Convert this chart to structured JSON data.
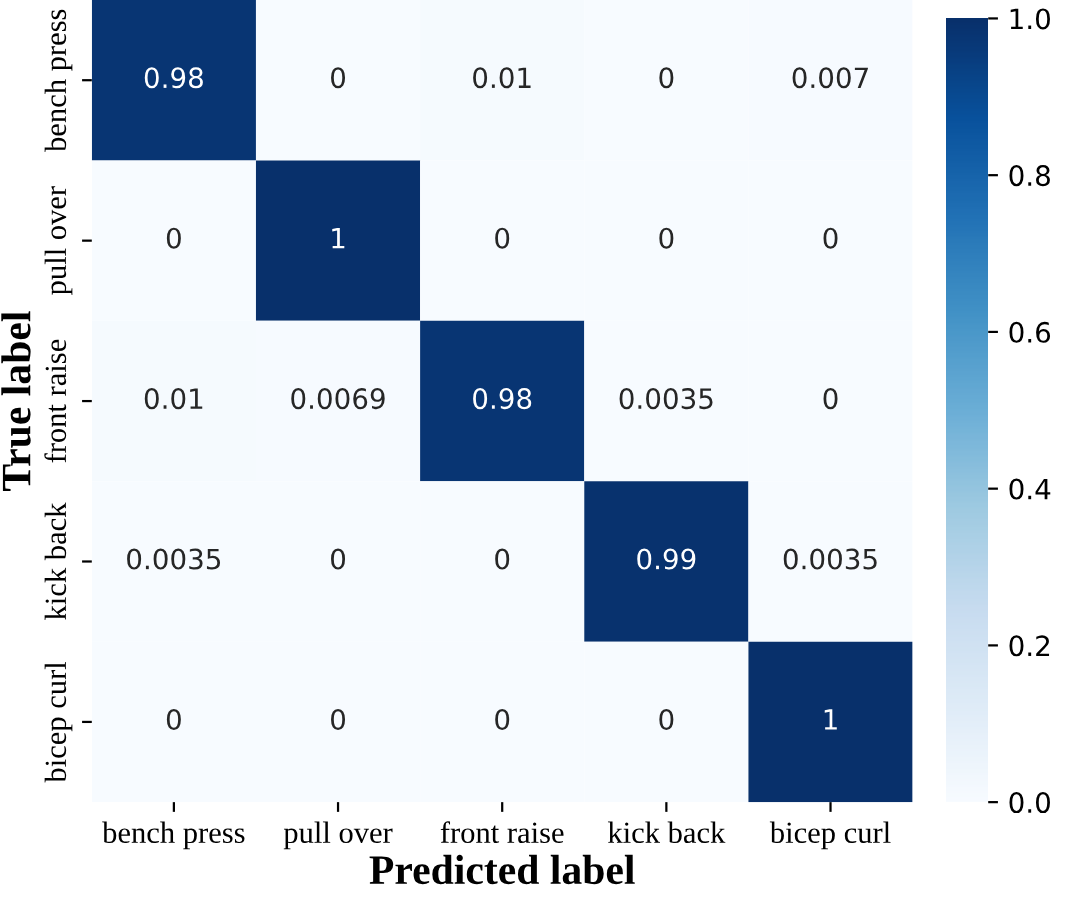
{
  "chart_data": {
    "type": "heatmap",
    "xlabel": "Predicted label",
    "ylabel": "True label",
    "categories": [
      "bench press",
      "pull over",
      "front raise",
      "kick back",
      "bicep curl"
    ],
    "y_categories": [
      "bench press",
      "pull over",
      "front raise",
      "kick back",
      "bicep curl"
    ],
    "cells": [
      [
        0.98,
        0,
        0.01,
        0,
        0.007
      ],
      [
        0,
        1,
        0,
        0,
        0
      ],
      [
        0.01,
        0.0069,
        0.98,
        0.0035,
        0
      ],
      [
        0.0035,
        0,
        0,
        0.99,
        0.0035
      ],
      [
        0,
        0,
        0,
        0,
        1
      ]
    ],
    "clim": [
      0.0,
      1.0
    ],
    "cticks": [
      {
        "value": 0.0,
        "label": "0.0"
      },
      {
        "value": 0.2,
        "label": "0.2"
      },
      {
        "value": 0.4,
        "label": "0.4"
      },
      {
        "value": 0.6,
        "label": "0.6"
      },
      {
        "value": 0.8,
        "label": "0.8"
      },
      {
        "value": 1.0,
        "label": "1.0"
      }
    ],
    "data_labels": true
  }
}
